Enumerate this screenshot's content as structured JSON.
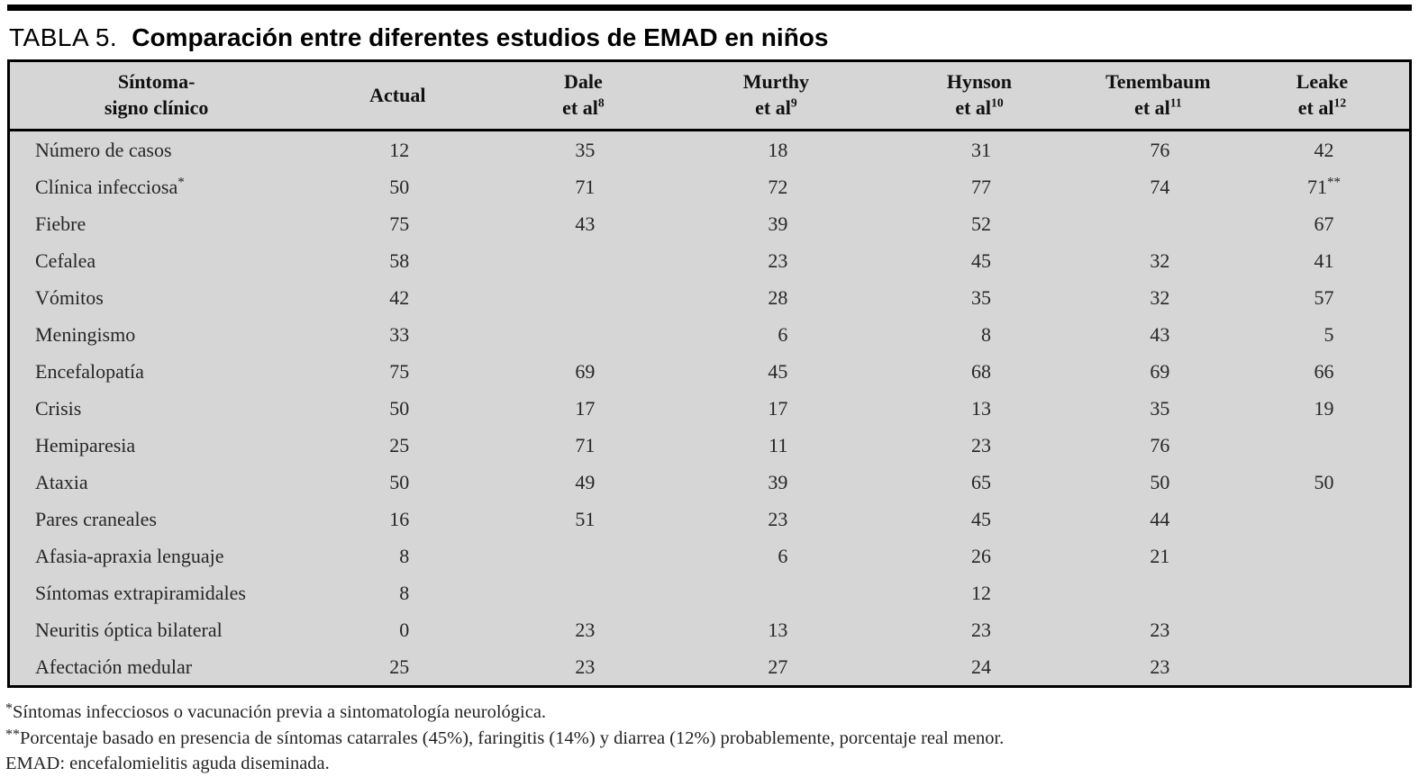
{
  "title": {
    "prefix": "TABLA 5.",
    "main": "Comparación entre diferentes estudios de EMAD en niños"
  },
  "colors": {
    "table_background": "#d6d6d6",
    "border": "#000000",
    "text": "#1f1f1f",
    "page_background": "#ffffff"
  },
  "table": {
    "columns": [
      {
        "line1": "Síntoma-",
        "line2": "signo clínico",
        "sup": ""
      },
      {
        "line1": "Actual",
        "line2": "",
        "sup": ""
      },
      {
        "line1": "Dale",
        "line2": "et al",
        "sup": "8"
      },
      {
        "line1": "Murthy",
        "line2": "et al",
        "sup": "9"
      },
      {
        "line1": "Hynson",
        "line2": "et al",
        "sup": "10"
      },
      {
        "line1": "Tenembaum",
        "line2": "et al",
        "sup": "11"
      },
      {
        "line1": "Leake",
        "line2": "et al",
        "sup": "12"
      }
    ],
    "rows": [
      {
        "label": "Número de casos",
        "label_sup": "",
        "values": [
          "12",
          "35",
          "18",
          "31",
          "76",
          "42"
        ],
        "sups": [
          "",
          "",
          "",
          "",
          "",
          ""
        ]
      },
      {
        "label": "Clínica infecciosa",
        "label_sup": "*",
        "values": [
          "50",
          "71",
          "72",
          "77",
          "74",
          "71"
        ],
        "sups": [
          "",
          "",
          "",
          "",
          "",
          "**"
        ]
      },
      {
        "label": "Fiebre",
        "label_sup": "",
        "values": [
          "75",
          "43",
          "39",
          "52",
          "",
          "67"
        ],
        "sups": [
          "",
          "",
          "",
          "",
          "",
          ""
        ]
      },
      {
        "label": "Cefalea",
        "label_sup": "",
        "values": [
          "58",
          "",
          "23",
          "45",
          "32",
          "41"
        ],
        "sups": [
          "",
          "",
          "",
          "",
          "",
          ""
        ]
      },
      {
        "label": "Vómitos",
        "label_sup": "",
        "values": [
          "42",
          "",
          "28",
          "35",
          "32",
          "57"
        ],
        "sups": [
          "",
          "",
          "",
          "",
          "",
          ""
        ]
      },
      {
        "label": "Meningismo",
        "label_sup": "",
        "values": [
          "33",
          "",
          "6",
          "8",
          "43",
          "5"
        ],
        "sups": [
          "",
          "",
          "",
          "",
          "",
          ""
        ]
      },
      {
        "label": "Encefalopatía",
        "label_sup": "",
        "values": [
          "75",
          "69",
          "45",
          "68",
          "69",
          "66"
        ],
        "sups": [
          "",
          "",
          "",
          "",
          "",
          ""
        ]
      },
      {
        "label": "Crisis",
        "label_sup": "",
        "values": [
          "50",
          "17",
          "17",
          "13",
          "35",
          "19"
        ],
        "sups": [
          "",
          "",
          "",
          "",
          "",
          ""
        ]
      },
      {
        "label": "Hemiparesia",
        "label_sup": "",
        "values": [
          "25",
          "71",
          "11",
          "23",
          "76",
          ""
        ],
        "sups": [
          "",
          "",
          "",
          "",
          "",
          ""
        ]
      },
      {
        "label": "Ataxia",
        "label_sup": "",
        "values": [
          "50",
          "49",
          "39",
          "65",
          "50",
          "50"
        ],
        "sups": [
          "",
          "",
          "",
          "",
          "",
          ""
        ]
      },
      {
        "label": "Pares craneales",
        "label_sup": "",
        "values": [
          "16",
          "51",
          "23",
          "45",
          "44",
          ""
        ],
        "sups": [
          "",
          "",
          "",
          "",
          "",
          ""
        ]
      },
      {
        "label": "Afasia-apraxia lenguaje",
        "label_sup": "",
        "values": [
          "8",
          "",
          "6",
          "26",
          "21",
          ""
        ],
        "sups": [
          "",
          "",
          "",
          "",
          "",
          ""
        ]
      },
      {
        "label": "Síntomas extrapiramidales",
        "label_sup": "",
        "values": [
          "8",
          "",
          "",
          "12",
          "",
          ""
        ],
        "sups": [
          "",
          "",
          "",
          "",
          "",
          ""
        ]
      },
      {
        "label": "Neuritis óptica bilateral",
        "label_sup": "",
        "values": [
          "0",
          "23",
          "13",
          "23",
          "23",
          ""
        ],
        "sups": [
          "",
          "",
          "",
          "",
          "",
          ""
        ]
      },
      {
        "label": "Afectación medular",
        "label_sup": "",
        "values": [
          "25",
          "23",
          "27",
          "24",
          "23",
          ""
        ],
        "sups": [
          "",
          "",
          "",
          "",
          "",
          ""
        ]
      }
    ]
  },
  "footnotes": [
    {
      "marker": "*",
      "text": "Síntomas infecciosos o vacunación previa a sintomatología neurológica."
    },
    {
      "marker": "**",
      "text": "Porcentaje basado en presencia de síntomas catarrales (45%), faringitis (14%) y diarrea (12%) probablemente, porcentaje real menor."
    },
    {
      "marker": "",
      "text": "EMAD: encefalomielitis aguda diseminada."
    }
  ]
}
